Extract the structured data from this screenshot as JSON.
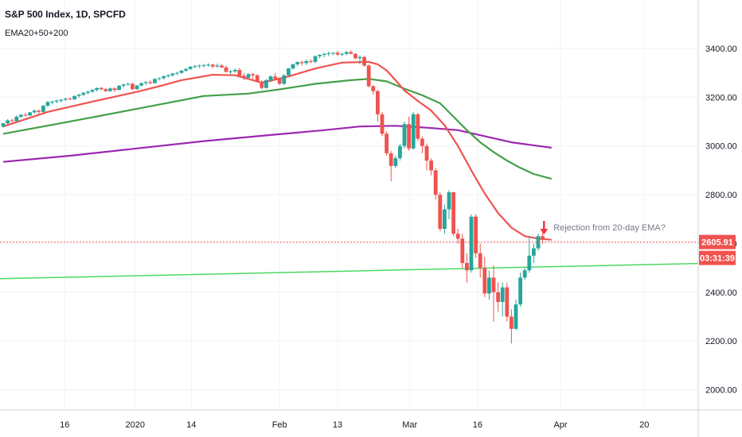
{
  "chart_data": {
    "type": "candlestick",
    "title": "S&P 500 Index, 1D, SPCFD",
    "subtitle": "EMA20+50+200",
    "ylim": [
      1950,
      3520
    ],
    "grid": true,
    "y_ticks": [
      3400,
      3200,
      3000,
      2800,
      2600,
      2400,
      2200,
      2000
    ],
    "y_tick_labels": [
      "3400.00",
      "3200.00",
      "3000.00",
      "2800.00",
      "2600.00",
      "2400.00",
      "2200.00",
      "2000.00"
    ],
    "x_ticks": [
      {
        "label": "16",
        "i": 13.8
      },
      {
        "label": "2020",
        "i": 29.6
      },
      {
        "label": "14",
        "i": 42.2
      },
      {
        "label": "Feb",
        "i": 62.0
      },
      {
        "label": "13",
        "i": 75.0
      },
      {
        "label": "Mar",
        "i": 91.2
      },
      {
        "label": "16",
        "i": 106.4
      },
      {
        "label": "Apr",
        "i": 125.0
      },
      {
        "label": "20",
        "i": 143.8
      }
    ],
    "colors": {
      "up": "#26a69a",
      "down": "#ef5350",
      "ema20": "#ef5350",
      "ema50": "#43a047",
      "ema200": "#9c27b0",
      "trendline": "#4cd964",
      "price_line": "#ef5350",
      "grid": "#f0f3fa"
    },
    "candles": [
      [
        3080,
        3095,
        3075,
        3093
      ],
      [
        3093,
        3110,
        3090,
        3105
      ],
      [
        3105,
        3112,
        3098,
        3102
      ],
      [
        3102,
        3125,
        3100,
        3120
      ],
      [
        3120,
        3130,
        3115,
        3128
      ],
      [
        3128,
        3136,
        3120,
        3125
      ],
      [
        3125,
        3140,
        3123,
        3138
      ],
      [
        3138,
        3150,
        3132,
        3145
      ],
      [
        3145,
        3150,
        3130,
        3140
      ],
      [
        3140,
        3168,
        3138,
        3165
      ],
      [
        3165,
        3185,
        3160,
        3180
      ],
      [
        3180,
        3186,
        3170,
        3182
      ],
      [
        3182,
        3190,
        3175,
        3186
      ],
      [
        3186,
        3192,
        3178,
        3190
      ],
      [
        3190,
        3198,
        3183,
        3194
      ],
      [
        3194,
        3200,
        3188,
        3191
      ],
      [
        3191,
        3207,
        3189,
        3205
      ],
      [
        3205,
        3214,
        3198,
        3210
      ],
      [
        3210,
        3222,
        3205,
        3218
      ],
      [
        3218,
        3226,
        3212,
        3223
      ],
      [
        3223,
        3234,
        3218,
        3230
      ],
      [
        3230,
        3240,
        3224,
        3238
      ],
      [
        3238,
        3242,
        3228,
        3233
      ],
      [
        3233,
        3238,
        3222,
        3225
      ],
      [
        3225,
        3240,
        3222,
        3236
      ],
      [
        3236,
        3241,
        3222,
        3230
      ],
      [
        3230,
        3250,
        3228,
        3247
      ],
      [
        3247,
        3256,
        3240,
        3252
      ],
      [
        3252,
        3260,
        3246,
        3255
      ],
      [
        3255,
        3260,
        3228,
        3233
      ],
      [
        3233,
        3250,
        3230,
        3248
      ],
      [
        3248,
        3260,
        3244,
        3258
      ],
      [
        3258,
        3266,
        3250,
        3262
      ],
      [
        3262,
        3270,
        3252,
        3258
      ],
      [
        3258,
        3278,
        3256,
        3275
      ],
      [
        3275,
        3282,
        3268,
        3278
      ],
      [
        3278,
        3290,
        3272,
        3286
      ],
      [
        3286,
        3295,
        3280,
        3290
      ],
      [
        3290,
        3300,
        3284,
        3297
      ],
      [
        3297,
        3305,
        3290,
        3300
      ],
      [
        3300,
        3312,
        3296,
        3309
      ],
      [
        3309,
        3320,
        3305,
        3316
      ],
      [
        3316,
        3328,
        3312,
        3325
      ],
      [
        3325,
        3332,
        3318,
        3328
      ],
      [
        3328,
        3334,
        3320,
        3330
      ],
      [
        3330,
        3336,
        3322,
        3332
      ],
      [
        3332,
        3340,
        3324,
        3334
      ],
      [
        3334,
        3336,
        3318,
        3326
      ],
      [
        3326,
        3338,
        3322,
        3330
      ],
      [
        3330,
        3336,
        3320,
        3322
      ],
      [
        3322,
        3330,
        3300,
        3304
      ],
      [
        3304,
        3312,
        3295,
        3306
      ],
      [
        3306,
        3318,
        3300,
        3312
      ],
      [
        3312,
        3320,
        3285,
        3288
      ],
      [
        3288,
        3300,
        3270,
        3280
      ],
      [
        3280,
        3298,
        3276,
        3295
      ],
      [
        3295,
        3300,
        3272,
        3290
      ],
      [
        3290,
        3295,
        3260,
        3262
      ],
      [
        3262,
        3270,
        3232,
        3238
      ],
      [
        3238,
        3275,
        3235,
        3270
      ],
      [
        3270,
        3290,
        3262,
        3285
      ],
      [
        3285,
        3300,
        3270,
        3277
      ],
      [
        3277,
        3282,
        3250,
        3255
      ],
      [
        3255,
        3295,
        3250,
        3290
      ],
      [
        3290,
        3320,
        3287,
        3318
      ],
      [
        3318,
        3338,
        3314,
        3335
      ],
      [
        3335,
        3348,
        3328,
        3344
      ],
      [
        3344,
        3350,
        3330,
        3340
      ],
      [
        3340,
        3355,
        3332,
        3348
      ],
      [
        3348,
        3355,
        3340,
        3345
      ],
      [
        3345,
        3372,
        3340,
        3368
      ],
      [
        3368,
        3376,
        3360,
        3374
      ],
      [
        3374,
        3382,
        3364,
        3378
      ],
      [
        3378,
        3388,
        3368,
        3380
      ],
      [
        3380,
        3385,
        3372,
        3382
      ],
      [
        3382,
        3390,
        3370,
        3375
      ],
      [
        3375,
        3382,
        3368,
        3378
      ],
      [
        3378,
        3390,
        3372,
        3385
      ],
      [
        3385,
        3393,
        3376,
        3378
      ],
      [
        3378,
        3382,
        3355,
        3360
      ],
      [
        3360,
        3372,
        3335,
        3365
      ],
      [
        3365,
        3370,
        3325,
        3330
      ],
      [
        3330,
        3335,
        3240,
        3245
      ],
      [
        3245,
        3250,
        3210,
        3225
      ],
      [
        3225,
        3230,
        3100,
        3130
      ],
      [
        3130,
        3140,
        3040,
        3050
      ],
      [
        3050,
        3060,
        2960,
        2970
      ],
      [
        2970,
        2980,
        2855,
        2918
      ],
      [
        2918,
        2960,
        2910,
        2950
      ],
      [
        2950,
        3010,
        2940,
        3000
      ],
      [
        3000,
        3100,
        2990,
        3090
      ],
      [
        3090,
        3120,
        2980,
        2990
      ],
      [
        2990,
        3140,
        2985,
        3130
      ],
      [
        3130,
        3135,
        3020,
        3030
      ],
      [
        3030,
        3040,
        2970,
        3000
      ],
      [
        3000,
        3010,
        2900,
        2940
      ],
      [
        2940,
        2950,
        2880,
        2900
      ],
      [
        2900,
        2910,
        2780,
        2800
      ],
      [
        2800,
        2810,
        2650,
        2660
      ],
      [
        2660,
        2760,
        2640,
        2740
      ],
      [
        2740,
        2820,
        2700,
        2810
      ],
      [
        2810,
        2812,
        2630,
        2640
      ],
      [
        2640,
        2660,
        2600,
        2620
      ],
      [
        2620,
        2640,
        2500,
        2520
      ],
      [
        2520,
        2560,
        2440,
        2490
      ],
      [
        2490,
        2720,
        2480,
        2710
      ],
      [
        2710,
        2720,
        2540,
        2560
      ],
      [
        2560,
        2600,
        2460,
        2500
      ],
      [
        2500,
        2545,
        2380,
        2395
      ],
      [
        2395,
        2490,
        2370,
        2460
      ],
      [
        2460,
        2510,
        2280,
        2400
      ],
      [
        2400,
        2440,
        2320,
        2360
      ],
      [
        2360,
        2440,
        2300,
        2420
      ],
      [
        2420,
        2440,
        2280,
        2300
      ],
      [
        2300,
        2330,
        2190,
        2250
      ],
      [
        2250,
        2370,
        2245,
        2350
      ],
      [
        2350,
        2480,
        2340,
        2460
      ],
      [
        2460,
        2500,
        2450,
        2490
      ],
      [
        2490,
        2630,
        2480,
        2550
      ],
      [
        2550,
        2600,
        2520,
        2580
      ],
      [
        2580,
        2640,
        2570,
        2630
      ],
      [
        2630,
        2645,
        2600,
        2620
      ]
    ],
    "ema20": [
      [
        0,
        3080
      ],
      [
        10,
        3140
      ],
      [
        20,
        3182
      ],
      [
        30,
        3222
      ],
      [
        35,
        3245
      ],
      [
        40,
        3270
      ],
      [
        47,
        3292
      ],
      [
        52,
        3290
      ],
      [
        58,
        3260
      ],
      [
        64,
        3285
      ],
      [
        70,
        3318
      ],
      [
        76,
        3342
      ],
      [
        82,
        3345
      ],
      [
        84,
        3335
      ],
      [
        86,
        3310
      ],
      [
        88,
        3270
      ],
      [
        90,
        3228
      ],
      [
        93,
        3185
      ],
      [
        96,
        3145
      ],
      [
        99,
        3085
      ],
      [
        102,
        3000
      ],
      [
        105,
        2900
      ],
      [
        108,
        2805
      ],
      [
        111,
        2725
      ],
      [
        114,
        2665
      ],
      [
        117,
        2630
      ],
      [
        120,
        2620
      ],
      [
        123,
        2615
      ]
    ],
    "ema50": [
      [
        0,
        3050
      ],
      [
        12,
        3090
      ],
      [
        25,
        3135
      ],
      [
        35,
        3170
      ],
      [
        45,
        3205
      ],
      [
        55,
        3215
      ],
      [
        62,
        3232
      ],
      [
        70,
        3255
      ],
      [
        78,
        3270
      ],
      [
        82,
        3275
      ],
      [
        86,
        3265
      ],
      [
        90,
        3235
      ],
      [
        94,
        3208
      ],
      [
        98,
        3175
      ],
      [
        101,
        3120
      ],
      [
        104,
        3065
      ],
      [
        107,
        3015
      ],
      [
        110,
        2975
      ],
      [
        113,
        2940
      ],
      [
        116,
        2910
      ],
      [
        119,
        2885
      ],
      [
        123,
        2865
      ]
    ],
    "ema200": [
      [
        0,
        2935
      ],
      [
        15,
        2960
      ],
      [
        30,
        2990
      ],
      [
        45,
        3020
      ],
      [
        60,
        3045
      ],
      [
        72,
        3065
      ],
      [
        80,
        3080
      ],
      [
        88,
        3083
      ],
      [
        95,
        3075
      ],
      [
        102,
        3065
      ],
      [
        108,
        3040
      ],
      [
        114,
        3015
      ],
      [
        120,
        3000
      ],
      [
        123,
        2993
      ]
    ],
    "trendline": [
      [
        -2,
        2455
      ],
      [
        156,
        2518
      ]
    ],
    "last_price": 2605.91,
    "last_price_label": "2605.91",
    "countdown_label": "03:31:39",
    "annotation": "Rejection from 20-day EMA?",
    "annotation_anchor": [
      121.3,
      2660
    ]
  }
}
